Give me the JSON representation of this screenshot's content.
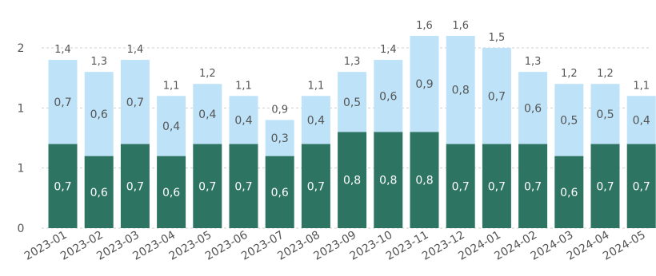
{
  "chart_data": {
    "type": "bar",
    "stacked": true,
    "categories": [
      "2023-01",
      "2023-02",
      "2023-03",
      "2023-04",
      "2023-05",
      "2023-06",
      "2023-07",
      "2023-08",
      "2023-09",
      "2023-10",
      "2023-11",
      "2023-12",
      "2024-01",
      "2024-02",
      "2024-03",
      "2024-04",
      "2024-05"
    ],
    "series": [
      {
        "color": "#2e7463",
        "values": [
          0.7,
          0.6,
          0.7,
          0.6,
          0.7,
          0.7,
          0.6,
          0.7,
          0.8,
          0.8,
          0.8,
          0.7,
          0.7,
          0.7,
          0.6,
          0.7,
          0.7
        ],
        "labels": [
          "0,7",
          "0,6",
          "0,7",
          "0,6",
          "0,7",
          "0,7",
          "0,6",
          "0,7",
          "0,8",
          "0,8",
          "0,8",
          "0,7",
          "0,7",
          "0,7",
          "0,6",
          "0,7",
          "0,7"
        ]
      },
      {
        "color": "#bee3f8",
        "values": [
          0.7,
          0.6,
          0.7,
          0.4,
          0.4,
          0.4,
          0.3,
          0.4,
          0.5,
          0.6,
          0.9,
          0.8,
          0.7,
          0.6,
          0.5,
          0.5,
          0.4
        ],
        "labels": [
          "0,7",
          "0,6",
          "0,7",
          "0,4",
          "0,4",
          "0,4",
          "0,3",
          "0,4",
          "0,5",
          "0,6",
          "0,9",
          "0,8",
          "0,7",
          "0,6",
          "0,5",
          "0,5",
          "0,4"
        ]
      }
    ],
    "totals": [
      1.4,
      1.3,
      1.4,
      1.1,
      1.2,
      1.1,
      0.9,
      1.1,
      1.3,
      1.4,
      1.6,
      1.6,
      1.5,
      1.3,
      1.2,
      1.2,
      1.1
    ],
    "total_labels": [
      "1,4",
      "1,3",
      "1,4",
      "1,1",
      "1,2",
      "1,1",
      "0,9",
      "1,1",
      "1,3",
      "1,4",
      "1,6",
      "1,6",
      "1,5",
      "1,3",
      "1,2",
      "1,2",
      "1,1"
    ],
    "y_ticks": [
      0,
      0.5,
      1.0,
      1.5
    ],
    "y_tick_labels": [
      "0",
      "1",
      "1",
      "2"
    ],
    "ylim": [
      0,
      1.5
    ],
    "grid": true,
    "title": "",
    "xlabel": "",
    "ylabel": ""
  }
}
